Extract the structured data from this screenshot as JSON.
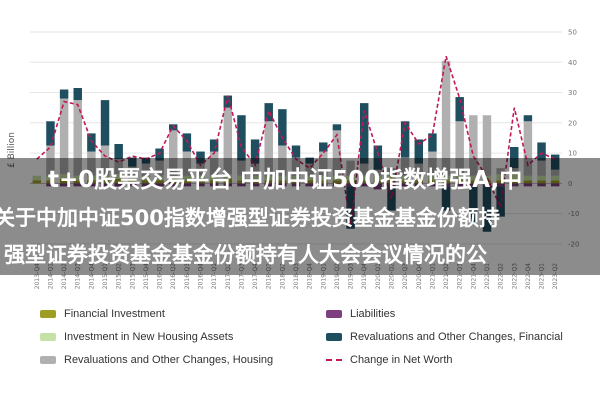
{
  "overlay": {
    "line1": "t+0股票交易平台 中加中证500指数增强A,中",
    "line2": "关于中加中证500指数增强型证券投资基金基金份额持",
    "line3": "强型证券投资基金基金份额持有人大会会议情况的公"
  },
  "chart_data": {
    "type": "bar",
    "ylabel": "£ Billion",
    "ylim": [
      -25,
      50
    ],
    "yticks": [
      -20,
      -10,
      0,
      10,
      20,
      30,
      40,
      50
    ],
    "categories": [
      "2013-Q4",
      "2014-Q1",
      "2014-Q2",
      "2014-Q3",
      "2014-Q4",
      "2015-Q1",
      "2015-Q2",
      "2015-Q3",
      "2015-Q4",
      "2016-Q1",
      "2016-Q2",
      "2016-Q3",
      "2016-Q4",
      "2017-Q1",
      "2017-Q2",
      "2017-Q3",
      "2017-Q4",
      "2018-Q1",
      "2018-Q2",
      "2018-Q3",
      "2018-Q4",
      "2019-Q1",
      "2019-Q2",
      "2019-Q3",
      "2019-Q4",
      "2020-Q1",
      "2020-Q2",
      "2020-Q3",
      "2020-Q4",
      "2021-Q1",
      "2021-Q2",
      "2021-Q3",
      "2021-Q4",
      "2022-Q1",
      "2022-Q2",
      "2022-Q3",
      "2022-Q4",
      "2023-Q1",
      "2023-Q2"
    ],
    "series": [
      {
        "name": "Financial Investment",
        "color": "#9e9d24",
        "values": [
          1,
          1,
          1.5,
          1,
          1,
          1,
          1.5,
          1,
          1,
          1,
          1,
          1,
          1,
          1,
          1.5,
          1,
          1,
          1,
          1,
          1,
          1,
          1,
          1,
          1,
          1,
          1,
          2,
          1,
          1,
          1,
          1,
          1,
          1,
          1,
          1,
          1,
          1,
          1,
          1
        ]
      },
      {
        "name": "Investment in New Housing Assets",
        "color": "#c5e1a5",
        "values": [
          1.5,
          1.5,
          1.5,
          1.5,
          1.5,
          1.5,
          1.5,
          1.5,
          1.5,
          1.5,
          1.5,
          1.5,
          1.5,
          1.5,
          1.5,
          1.5,
          1.5,
          1.5,
          1.5,
          1.5,
          1.5,
          1.5,
          1.5,
          1.5,
          1.5,
          1.5,
          1,
          1.5,
          1.5,
          1.5,
          1.5,
          1.5,
          1.5,
          1.5,
          2,
          2,
          1.5,
          1.5,
          1.5
        ]
      },
      {
        "name": "Revaluations and Other Changes, Housing",
        "color": "#b0b0b0",
        "values": [
          0,
          10,
          25,
          25,
          8,
          10,
          5,
          3,
          4,
          5,
          15,
          8,
          4,
          8,
          22,
          5,
          4,
          18,
          10,
          6,
          4,
          8,
          15,
          5,
          4,
          2,
          2,
          6,
          4,
          8,
          38,
          18,
          20,
          20,
          2,
          2,
          18,
          5,
          2
        ]
      },
      {
        "name": "Liabilities",
        "color": "#7b3f7f",
        "values": [
          0,
          -1,
          -1,
          -1,
          -1,
          -1,
          -1,
          -1,
          -1,
          -1,
          -1,
          -1,
          -1,
          -1,
          -1,
          -1,
          -1,
          -1,
          -1,
          -1,
          -1,
          -1,
          -1,
          -1,
          -1,
          -2,
          -1,
          -1,
          -1,
          -1,
          -1,
          -1,
          -1,
          -1,
          -1,
          -1,
          -1,
          -1,
          -1
        ]
      },
      {
        "name": "Revaluations and Other Changes, Financial",
        "color": "#1f4e5f",
        "values": [
          0,
          8,
          3,
          4,
          6,
          15,
          5,
          3,
          2,
          4,
          2,
          6,
          4,
          4,
          4,
          15,
          8,
          6,
          12,
          4,
          2,
          3,
          2,
          -14,
          20,
          8,
          -8,
          12,
          8,
          6,
          -8,
          8,
          -12,
          -15,
          -10,
          7,
          2,
          6,
          5
        ]
      }
    ],
    "lines": [
      {
        "name": "Change in Net Worth",
        "color": "#c2185b",
        "dash": true,
        "values": [
          8,
          12,
          27,
          26,
          14,
          9,
          7,
          9,
          8,
          10,
          19,
          14,
          6,
          10,
          29,
          12,
          6,
          24,
          15,
          8,
          5,
          10,
          16,
          -14,
          24,
          10,
          -5,
          20,
          13,
          16,
          42,
          28,
          9,
          2,
          -8,
          25,
          6,
          10,
          8
        ]
      }
    ]
  },
  "legend": {
    "items": [
      {
        "label": "Financial Investment",
        "color": "#9e9d24",
        "kind": "swatch"
      },
      {
        "label": "Liabilities",
        "color": "#7b3f7f",
        "kind": "swatch"
      },
      {
        "label": "Investment in New Housing Assets",
        "color": "#c5e1a5",
        "kind": "swatch"
      },
      {
        "label": "Revaluations and Other Changes, Financial",
        "color": "#1f4e5f",
        "kind": "swatch"
      },
      {
        "label": "Revaluations and Other Changes, Housing",
        "color": "#b0b0b0",
        "kind": "swatch"
      },
      {
        "label": "Change in Net Worth",
        "color": "#c2185b",
        "kind": "dash"
      }
    ]
  }
}
